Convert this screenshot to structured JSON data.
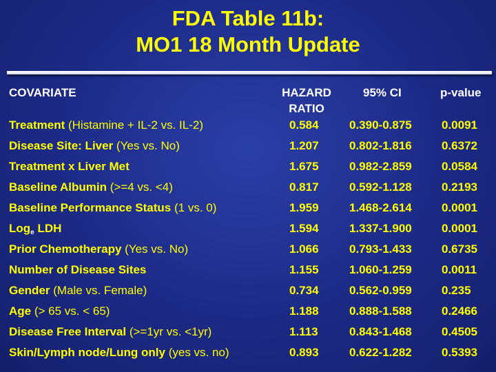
{
  "title": {
    "line1": "FDA Table 11b:",
    "line2": "MO1 18 Month Update"
  },
  "headers": {
    "covariate": "COVARIATE",
    "hazard_line1": "HAZARD",
    "hazard_line2": "RATIO",
    "ci": "95% CI",
    "pvalue": "p-value"
  },
  "rows": [
    {
      "label": "Treatment",
      "detail": " (Histamine + IL-2 vs. IL-2)",
      "hr": "0.584",
      "ci": "0.390-0.875",
      "p": "0.0091"
    },
    {
      "label": "Disease Site:  Liver",
      "detail": " (Yes vs. No)",
      "hr": "1.207",
      "ci": "0.802-1.816",
      "p": "0.6372"
    },
    {
      "label": "Treatment x Liver Met",
      "detail": "",
      "hr": "1.675",
      "ci": "0.982-2.859",
      "p": "0.0584"
    },
    {
      "label": "Baseline Albumin",
      "detail": " (>=4 vs. <4)",
      "hr": "0.817",
      "ci": "0.592-1.128",
      "p": "0.2193"
    },
    {
      "label": "Baseline Performance Status",
      "detail": " (1 vs. 0)",
      "hr": "1.959",
      "ci": "1.468-2.614",
      "p": "0.0001"
    },
    {
      "label": "Log",
      "sub": "e",
      "label_after": " LDH",
      "detail": "",
      "hr": "1.594",
      "ci": "1.337-1.900",
      "p": "0.0001"
    },
    {
      "label": "Prior Chemotherapy",
      "detail": " (Yes vs. No)",
      "hr": "1.066",
      "ci": "0.793-1.433",
      "p": "0.6735"
    },
    {
      "label": "Number of Disease Sites",
      "detail": "",
      "hr": "1.155",
      "ci": "1.060-1.259",
      "p": "0.0011"
    },
    {
      "label": "Gender",
      "detail": " (Male vs. Female)",
      "hr": "0.734",
      "ci": "0.562-0.959",
      "p": "0.235"
    },
    {
      "label": "Age",
      "detail": " (> 65 vs. < 65)",
      "hr": "1.188",
      "ci": "0.888-1.588",
      "p": "0.2466"
    },
    {
      "label": "Disease Free Interval",
      "detail": " (>=1yr vs. <1yr)",
      "hr": "1.113",
      "ci": "0.843-1.468",
      "p": "0.4505"
    },
    {
      "label": "Skin/Lymph node/Lung only",
      "detail": " (yes vs. no)",
      "hr": "0.893",
      "ci": "0.622-1.282",
      "p": "0.5393"
    }
  ],
  "colors": {
    "title": "#ffff00",
    "header": "#ffffff",
    "cell": "#ffff00",
    "background": "#1c2a86"
  }
}
